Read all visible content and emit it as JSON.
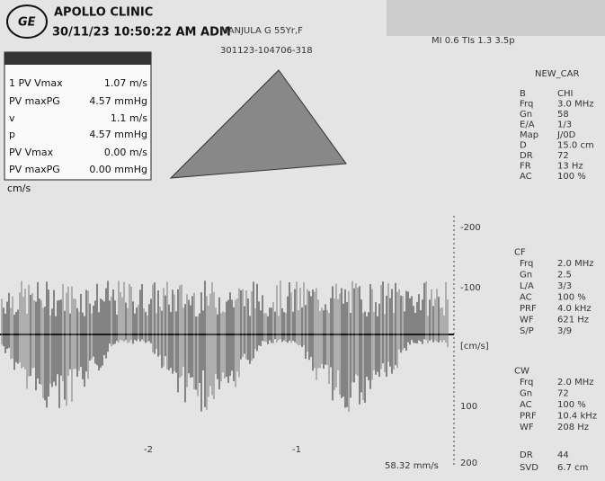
{
  "header": {
    "clinic": "APOLLO CLINIC",
    "datetime": "30/11/23 10:50:22 AM ADM",
    "patient": "MANJULA G 55Yr,F",
    "exam_id": "301123-104706-318",
    "indices": "MI 0.6 TIs 1.3 3.5p",
    "preset": "NEW_CAR"
  },
  "measurements": {
    "rows": [
      [
        "1 PV Vmax",
        "1.07 m/s"
      ],
      [
        "PV maxPG",
        "4.57 mmHg"
      ],
      [
        "v",
        "1.1 m/s"
      ],
      [
        "p",
        "4.57 mmHg"
      ],
      [
        "PV Vmax",
        "0.00 m/s"
      ],
      [
        "PV maxPG",
        "0.00 mmHg"
      ]
    ],
    "unit": "cm/s"
  },
  "b_mode": {
    "rows": [
      [
        "B",
        "CHI"
      ],
      [
        "Frq",
        "3.0 MHz"
      ],
      [
        "Gn",
        "58"
      ],
      [
        "E/A",
        "1/3"
      ],
      [
        "Map",
        "J/0D"
      ],
      [
        "D",
        "15.0 cm"
      ],
      [
        "DR",
        "72"
      ],
      [
        "FR",
        "13 Hz"
      ],
      [
        "AC",
        "100 %"
      ]
    ]
  },
  "cf_mode": {
    "title": "CF",
    "rows": [
      [
        "Frq",
        "2.0 MHz"
      ],
      [
        "Gn",
        "2.5"
      ],
      [
        "L/A",
        "3/3"
      ],
      [
        "AC",
        "100 %"
      ],
      [
        "PRF",
        "4.0 kHz"
      ],
      [
        "WF",
        "621 Hz"
      ],
      [
        "S/P",
        "3/9"
      ]
    ]
  },
  "cw_mode": {
    "title": "CW",
    "rows": [
      [
        "Frq",
        "2.0 MHz"
      ],
      [
        "Gn",
        "72"
      ],
      [
        "AC",
        "100 %"
      ],
      [
        "PRF",
        "10.4 kHz"
      ],
      [
        "WF",
        "208 Hz"
      ]
    ]
  },
  "footer": {
    "rows": [
      [
        "DR",
        "44"
      ],
      [
        "SVD",
        "6.7 cm"
      ]
    ],
    "sweep": "58.32 mm/s"
  },
  "scale": {
    "labels": [
      "-200",
      "-100",
      "[cm/s]",
      "100",
      "200"
    ]
  },
  "time_axis": {
    "labels": [
      "-2",
      "-1"
    ]
  }
}
